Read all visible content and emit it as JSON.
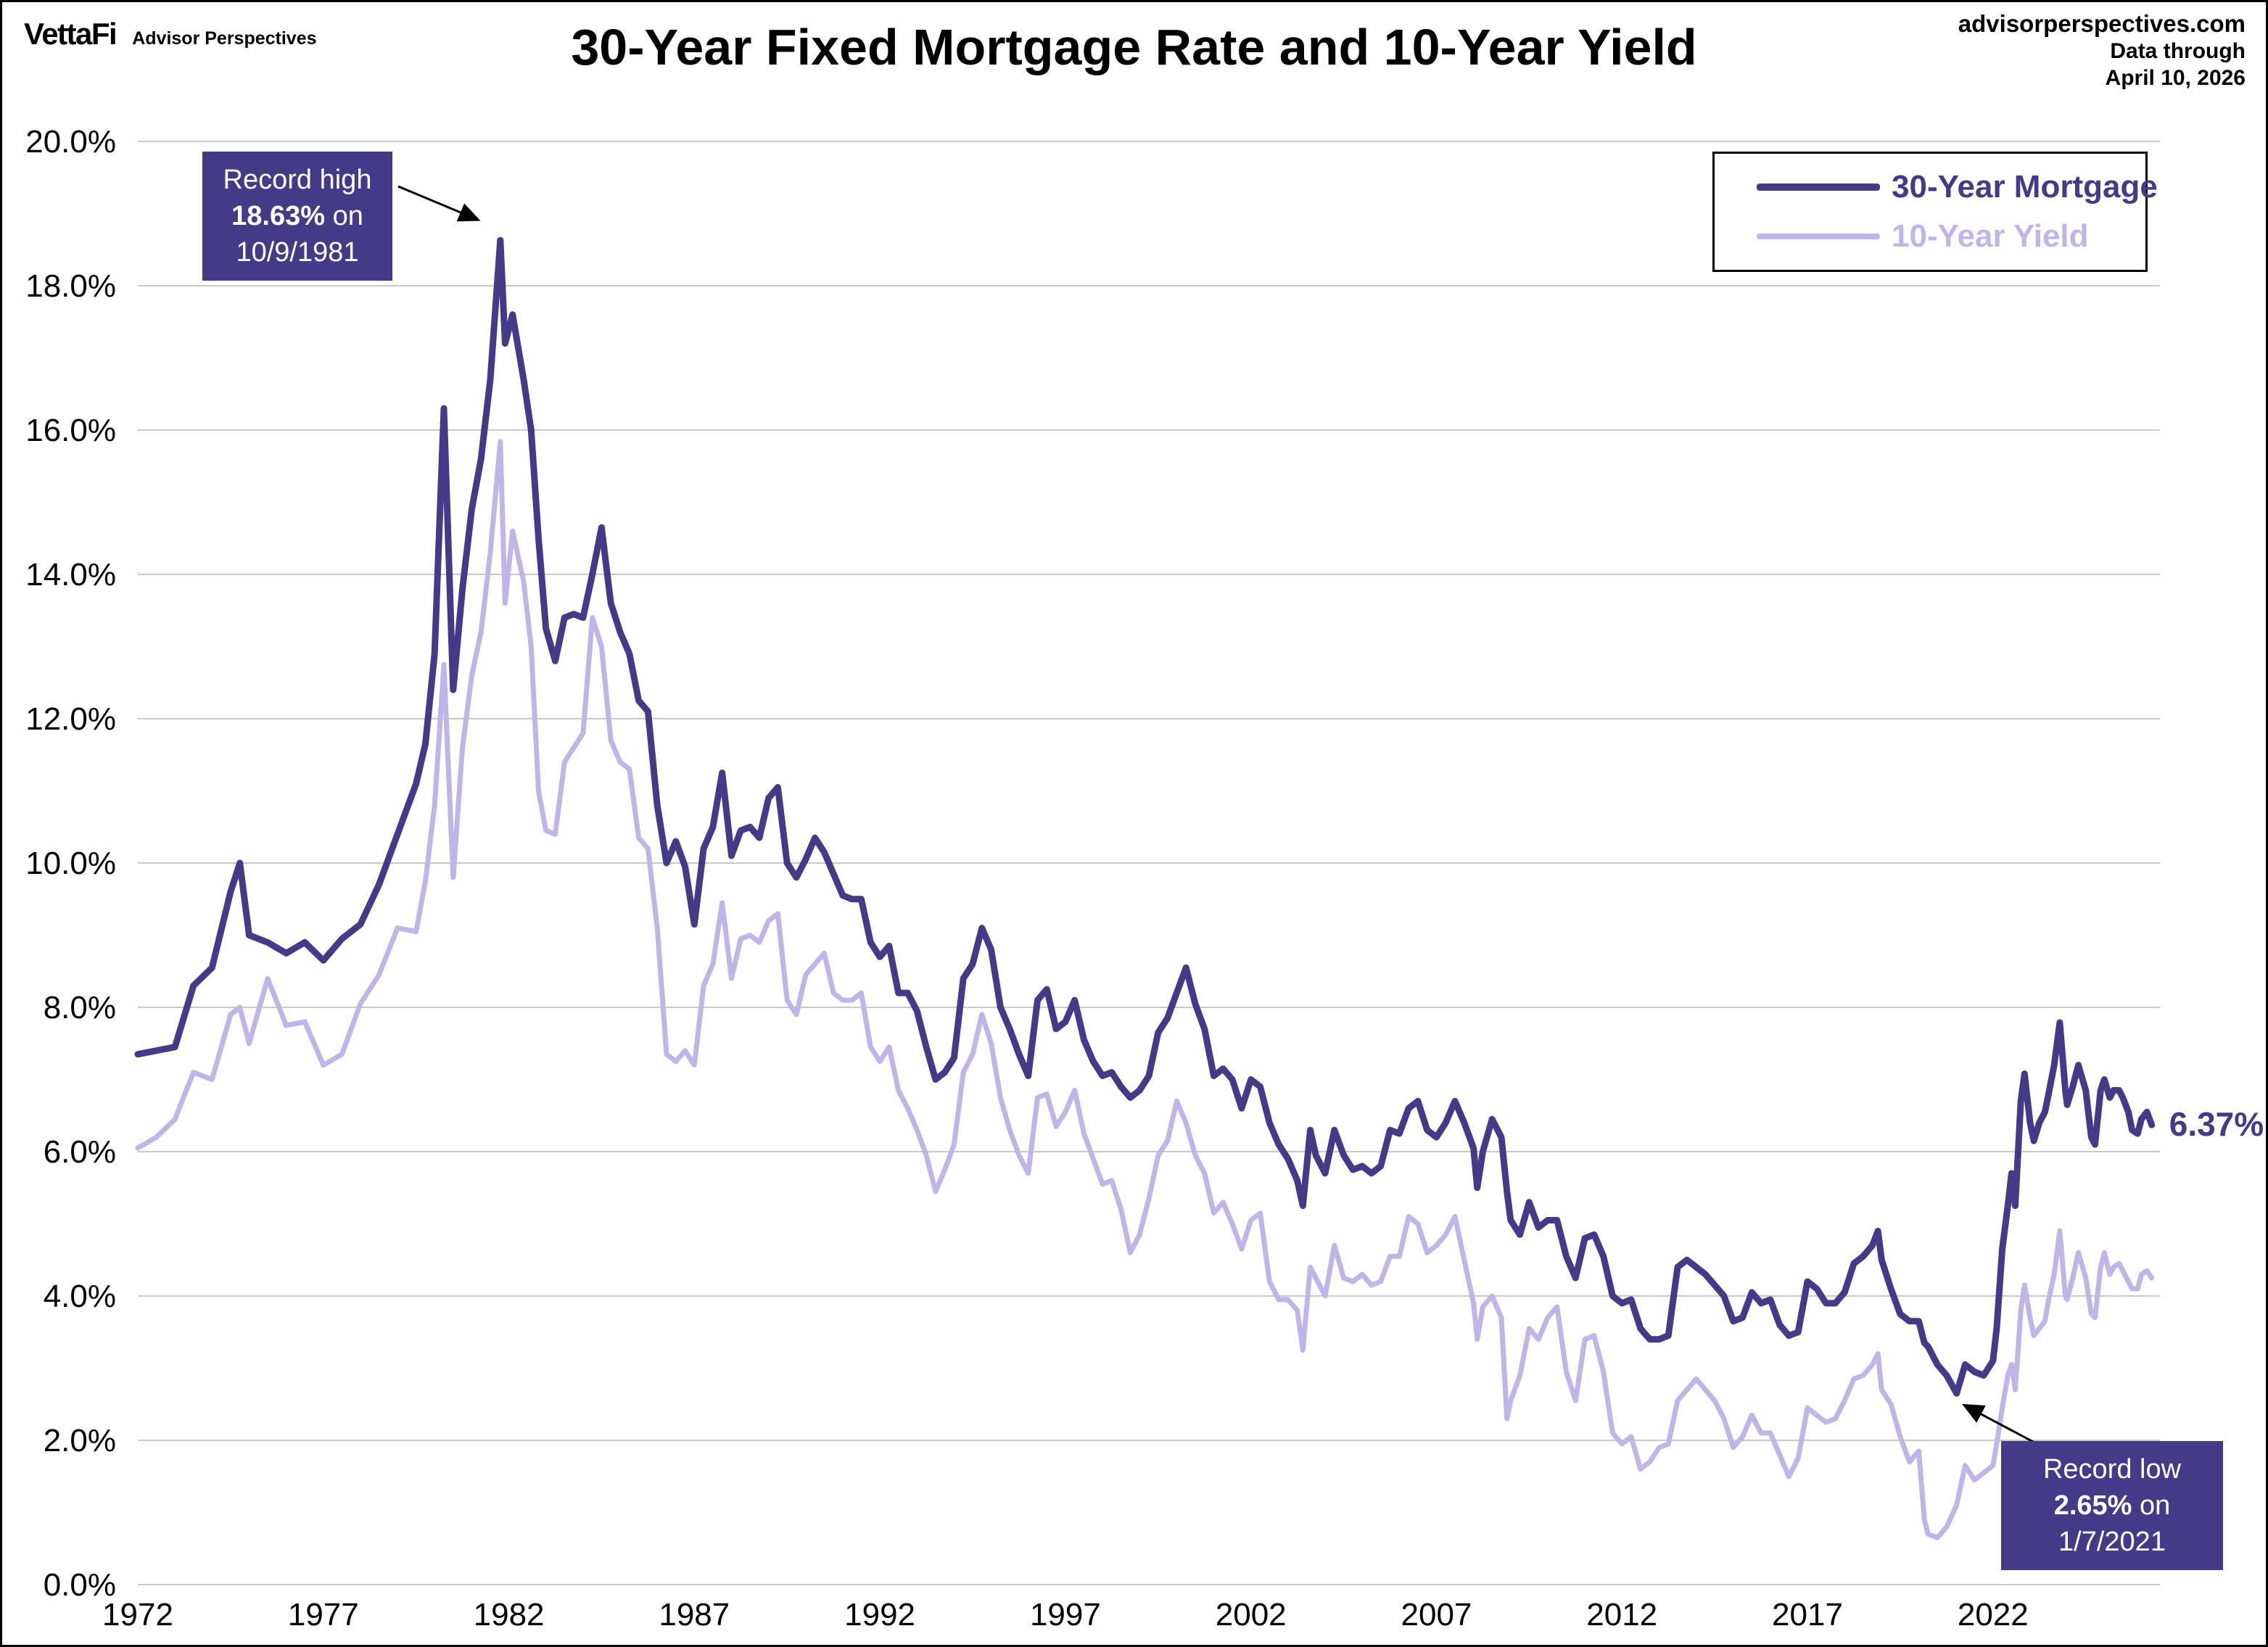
{
  "branding": {
    "logo": "VettaFi",
    "tagline": "Advisor Perspectives"
  },
  "header": {
    "title": "30-Year Fixed Mortgage Rate and 10-Year Yield",
    "source_url": "advisorperspectives.com",
    "data_through_label": "Data through",
    "data_through_date": "April 10, 2026"
  },
  "legend": [
    {
      "label": "30-Year Mortgage",
      "color": "#453a87",
      "swatch_height": 10
    },
    {
      "label": "10-Year Yield",
      "color": "#c0b5e9",
      "swatch_height": 8
    }
  ],
  "annotations": {
    "record_high": {
      "line1": "Record high",
      "value": "18.63%",
      "value_suffix": " on",
      "date": "10/9/1981",
      "point_x": 1981.77,
      "point_y": 18.63
    },
    "record_low": {
      "line1": "Record low",
      "value": "2.65%",
      "value_suffix": " on",
      "date": "1/7/2021",
      "point_x": 2021.02,
      "point_y": 2.65
    },
    "last_value_label": "6.37%"
  },
  "chart_data": {
    "type": "line",
    "title": "30-Year Fixed Mortgage Rate and 10-Year Yield",
    "xlabel": "",
    "ylabel": "",
    "xlim": [
      1972,
      2026.5
    ],
    "ylim": [
      0,
      20
    ],
    "grid": "horizontal",
    "legend_position": "top-right",
    "y_ticks": [
      0,
      2,
      4,
      6,
      8,
      10,
      12,
      14,
      16,
      18,
      20
    ],
    "y_tick_labels": [
      "0.0%",
      "2.0%",
      "4.0%",
      "6.0%",
      "8.0%",
      "10.0%",
      "12.0%",
      "14.0%",
      "16.0%",
      "18.0%",
      "20.0%"
    ],
    "x_ticks": [
      1972,
      1977,
      1982,
      1987,
      1992,
      1997,
      2002,
      2007,
      2012,
      2017,
      2022
    ],
    "x": [
      1972,
      1972.5,
      1973,
      1973.5,
      1974,
      1974.5,
      1974.75,
      1975,
      1975.5,
      1976,
      1976.5,
      1977,
      1977.5,
      1978,
      1978.5,
      1979,
      1979.5,
      1979.75,
      1980,
      1980.25,
      1980.5,
      1980.75,
      1981,
      1981.25,
      1981.5,
      1981.77,
      1981.9,
      1982.1,
      1982.4,
      1982.6,
      1982.8,
      1983,
      1983.25,
      1983.5,
      1983.75,
      1984,
      1984.25,
      1984.5,
      1984.75,
      1985,
      1985.25,
      1985.5,
      1985.75,
      1986,
      1986.25,
      1986.5,
      1986.75,
      1987,
      1987.25,
      1987.5,
      1987.75,
      1988,
      1988.25,
      1988.5,
      1988.75,
      1989,
      1989.25,
      1989.5,
      1989.75,
      1990,
      1990.25,
      1990.5,
      1990.75,
      1991,
      1991.25,
      1991.5,
      1991.75,
      1992,
      1992.25,
      1992.5,
      1992.75,
      1993,
      1993.25,
      1993.5,
      1993.75,
      1994,
      1994.25,
      1994.5,
      1994.75,
      1995,
      1995.25,
      1995.5,
      1995.75,
      1996,
      1996.25,
      1996.5,
      1996.75,
      1997,
      1997.25,
      1997.5,
      1997.75,
      1998,
      1998.25,
      1998.5,
      1998.75,
      1999,
      1999.25,
      1999.5,
      1999.75,
      2000,
      2000.25,
      2000.5,
      2000.75,
      2001,
      2001.25,
      2001.5,
      2001.75,
      2002,
      2002.25,
      2002.5,
      2002.75,
      2003,
      2003.25,
      2003.4,
      2003.6,
      2003.75,
      2004,
      2004.25,
      2004.5,
      2004.75,
      2005,
      2005.25,
      2005.5,
      2005.75,
      2006,
      2006.25,
      2006.5,
      2006.75,
      2007,
      2007.25,
      2007.5,
      2007.75,
      2008,
      2008.1,
      2008.25,
      2008.5,
      2008.75,
      2008.9,
      2009,
      2009.25,
      2009.5,
      2009.75,
      2010,
      2010.25,
      2010.5,
      2010.75,
      2011,
      2011.25,
      2011.5,
      2011.75,
      2012,
      2012.25,
      2012.5,
      2012.75,
      2013,
      2013.25,
      2013.5,
      2013.75,
      2014,
      2014.25,
      2014.5,
      2014.75,
      2015,
      2015.25,
      2015.5,
      2015.75,
      2016,
      2016.25,
      2016.5,
      2016.75,
      2017,
      2017.25,
      2017.5,
      2017.75,
      2018,
      2018.25,
      2018.5,
      2018.75,
      2018.9,
      2019,
      2019.25,
      2019.5,
      2019.75,
      2020,
      2020.15,
      2020.25,
      2020.5,
      2020.75,
      2021.02,
      2021.25,
      2021.5,
      2021.75,
      2022,
      2022.1,
      2022.25,
      2022.4,
      2022.5,
      2022.6,
      2022.75,
      2022.85,
      2023,
      2023.1,
      2023.25,
      2023.4,
      2023.5,
      2023.65,
      2023.8,
      2023.95,
      2024,
      2024.15,
      2024.3,
      2024.5,
      2024.65,
      2024.75,
      2024.9,
      2025,
      2025.15,
      2025.25,
      2025.4,
      2025.5,
      2025.65,
      2025.75,
      2025.9,
      2026,
      2026.15,
      2026.28
    ],
    "series": [
      {
        "name": "30-Year Mortgage",
        "color": "#453a87",
        "stroke_width": 9,
        "values": [
          7.35,
          7.4,
          7.45,
          8.3,
          8.55,
          9.6,
          10.0,
          9.0,
          8.9,
          8.75,
          8.9,
          8.65,
          8.95,
          9.15,
          9.7,
          10.4,
          11.1,
          11.65,
          12.9,
          16.3,
          12.4,
          13.8,
          14.9,
          15.6,
          16.7,
          18.63,
          17.2,
          17.6,
          16.7,
          16.0,
          14.5,
          13.25,
          12.8,
          13.4,
          13.45,
          13.4,
          14.0,
          14.65,
          13.6,
          13.2,
          12.9,
          12.25,
          12.1,
          10.8,
          10.0,
          10.3,
          9.95,
          9.15,
          10.2,
          10.5,
          11.25,
          10.1,
          10.45,
          10.5,
          10.35,
          10.9,
          11.05,
          10.0,
          9.8,
          10.05,
          10.35,
          10.15,
          9.85,
          9.55,
          9.5,
          9.5,
          8.9,
          8.7,
          8.85,
          8.2,
          8.2,
          7.95,
          7.45,
          7.0,
          7.1,
          7.3,
          8.4,
          8.6,
          9.1,
          8.8,
          8.0,
          7.7,
          7.35,
          7.05,
          8.1,
          8.25,
          7.7,
          7.8,
          8.1,
          7.55,
          7.25,
          7.05,
          7.1,
          6.9,
          6.75,
          6.85,
          7.05,
          7.65,
          7.85,
          8.2,
          8.55,
          8.05,
          7.7,
          7.05,
          7.15,
          7.0,
          6.6,
          7.0,
          6.9,
          6.4,
          6.1,
          5.9,
          5.6,
          5.25,
          6.3,
          5.95,
          5.7,
          6.3,
          5.95,
          5.75,
          5.8,
          5.7,
          5.8,
          6.3,
          6.25,
          6.6,
          6.7,
          6.3,
          6.2,
          6.4,
          6.7,
          6.4,
          6.05,
          5.5,
          6.0,
          6.45,
          6.2,
          5.45,
          5.05,
          4.85,
          5.3,
          4.95,
          5.05,
          5.05,
          4.55,
          4.25,
          4.8,
          4.85,
          4.55,
          4.0,
          3.9,
          3.95,
          3.55,
          3.4,
          3.4,
          3.45,
          4.4,
          4.5,
          4.4,
          4.3,
          4.15,
          4.0,
          3.65,
          3.7,
          4.05,
          3.9,
          3.95,
          3.6,
          3.45,
          3.5,
          4.2,
          4.1,
          3.9,
          3.9,
          4.05,
          4.45,
          4.55,
          4.7,
          4.9,
          4.5,
          4.1,
          3.75,
          3.65,
          3.65,
          3.35,
          3.3,
          3.05,
          2.9,
          2.65,
          3.05,
          2.95,
          2.9,
          3.1,
          3.55,
          4.65,
          5.25,
          5.7,
          5.25,
          6.7,
          7.08,
          6.4,
          6.15,
          6.4,
          6.55,
          6.8,
          7.2,
          7.79,
          6.85,
          6.65,
          6.9,
          7.2,
          6.85,
          6.2,
          6.1,
          6.85,
          7.0,
          6.75,
          6.85,
          6.85,
          6.75,
          6.55,
          6.3,
          6.25,
          6.45,
          6.55,
          6.37
        ]
      },
      {
        "name": "10-Year Yield",
        "color": "#c0b5e9",
        "stroke_width": 7,
        "values": [
          6.05,
          6.2,
          6.45,
          7.1,
          7.0,
          7.9,
          8.0,
          7.5,
          8.4,
          7.75,
          7.8,
          7.2,
          7.35,
          8.05,
          8.45,
          9.1,
          9.05,
          9.75,
          10.8,
          12.75,
          9.8,
          11.6,
          12.6,
          13.2,
          14.3,
          15.84,
          13.6,
          14.6,
          13.9,
          13.0,
          11.0,
          10.45,
          10.4,
          11.4,
          11.6,
          11.8,
          13.4,
          13.0,
          11.7,
          11.4,
          11.3,
          10.35,
          10.2,
          9.1,
          7.35,
          7.25,
          7.4,
          7.2,
          8.3,
          8.6,
          9.45,
          8.4,
          8.95,
          9.0,
          8.9,
          9.2,
          9.3,
          8.1,
          7.9,
          8.45,
          8.6,
          8.75,
          8.2,
          8.1,
          8.1,
          8.2,
          7.45,
          7.25,
          7.45,
          6.85,
          6.6,
          6.3,
          5.95,
          5.45,
          5.75,
          6.1,
          7.1,
          7.35,
          7.9,
          7.5,
          6.75,
          6.3,
          5.95,
          5.7,
          6.75,
          6.8,
          6.35,
          6.55,
          6.85,
          6.25,
          5.9,
          5.55,
          5.6,
          5.2,
          4.6,
          4.85,
          5.35,
          5.95,
          6.15,
          6.7,
          6.4,
          5.95,
          5.7,
          5.15,
          5.3,
          5.0,
          4.65,
          5.05,
          5.15,
          4.2,
          3.95,
          3.95,
          3.8,
          3.25,
          4.4,
          4.25,
          4.0,
          4.7,
          4.25,
          4.2,
          4.3,
          4.15,
          4.2,
          4.55,
          4.55,
          5.1,
          5.0,
          4.6,
          4.7,
          4.85,
          5.1,
          4.5,
          3.9,
          3.4,
          3.85,
          4.0,
          3.7,
          2.3,
          2.55,
          2.9,
          3.55,
          3.4,
          3.7,
          3.85,
          2.95,
          2.55,
          3.4,
          3.45,
          2.95,
          2.1,
          1.95,
          2.05,
          1.6,
          1.7,
          1.9,
          1.95,
          2.55,
          2.7,
          2.85,
          2.7,
          2.55,
          2.3,
          1.9,
          2.05,
          2.35,
          2.1,
          2.1,
          1.8,
          1.5,
          1.75,
          2.45,
          2.35,
          2.25,
          2.3,
          2.55,
          2.85,
          2.9,
          3.05,
          3.2,
          2.7,
          2.5,
          2.05,
          1.7,
          1.85,
          0.9,
          0.7,
          0.65,
          0.8,
          1.1,
          1.65,
          1.45,
          1.55,
          1.65,
          1.95,
          2.45,
          2.9,
          3.05,
          2.7,
          3.8,
          4.15,
          3.7,
          3.45,
          3.55,
          3.65,
          3.95,
          4.3,
          4.9,
          4.0,
          3.95,
          4.25,
          4.6,
          4.25,
          3.75,
          3.7,
          4.4,
          4.6,
          4.3,
          4.4,
          4.45,
          4.35,
          4.2,
          4.1,
          4.1,
          4.3,
          4.35,
          4.25
        ]
      }
    ]
  }
}
